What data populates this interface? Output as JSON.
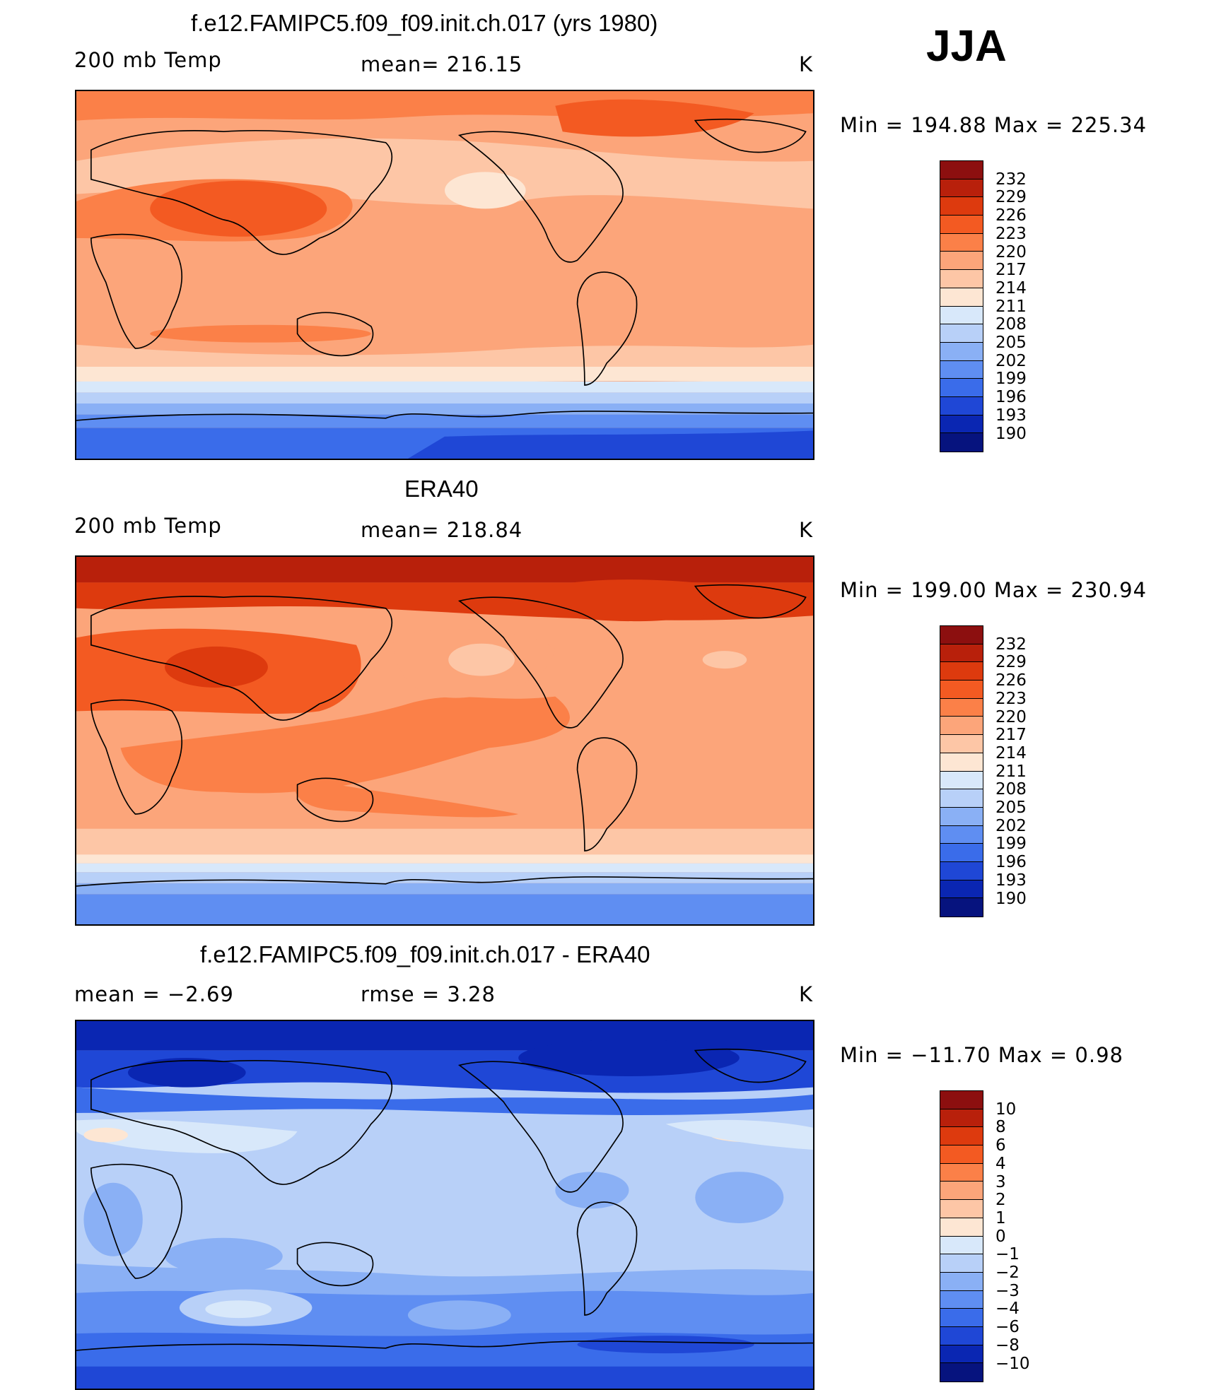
{
  "season": "JJA",
  "panels": [
    {
      "title": "f.e12.FAMIPC5.f09_f09.init.ch.017 (yrs 1980)",
      "left_label": "200 mb Temp",
      "center_label": "mean= 216.15",
      "units": "K",
      "minmax": "Min = 194.88 Max = 225.34",
      "colorbar_labels": [
        "232",
        "229",
        "226",
        "223",
        "220",
        "217",
        "214",
        "211",
        "208",
        "205",
        "202",
        "199",
        "196",
        "193",
        "190"
      ]
    },
    {
      "title": "ERA40",
      "left_label": "200 mb Temp",
      "center_label": "mean= 218.84",
      "units": "K",
      "minmax": "Min = 199.00 Max = 230.94",
      "colorbar_labels": [
        "232",
        "229",
        "226",
        "223",
        "220",
        "217",
        "214",
        "211",
        "208",
        "205",
        "202",
        "199",
        "196",
        "193",
        "190"
      ]
    },
    {
      "title": "f.e12.FAMIPC5.f09_f09.init.ch.017 - ERA40",
      "left_label": "mean =    −2.69",
      "center_label": "rmse =     3.28",
      "units": "K",
      "minmax": "Min = −11.70 Max =     0.98",
      "colorbar_labels": [
        "10",
        "8",
        "6",
        "4",
        "3",
        "2",
        "1",
        "0",
        "−1",
        "−2",
        "−3",
        "−4",
        "−6",
        "−8",
        "−10"
      ]
    }
  ],
  "palette": {
    "abs": [
      "#8c0f0f",
      "#b8200b",
      "#dd3a0e",
      "#f35a22",
      "#fb8048",
      "#fca57a",
      "#fdc6a6",
      "#fde6d3",
      "#d8e8fa",
      "#b8d0f8",
      "#8ab0f5",
      "#5f8ef2",
      "#3a6cea",
      "#1f47d6",
      "#0a26b2",
      "#06137e"
    ],
    "diff": [
      "#8c0f0f",
      "#b8200b",
      "#dd3a0e",
      "#f35a22",
      "#fb8048",
      "#fca57a",
      "#fdc6a6",
      "#fde6d3",
      "#d8e8fa",
      "#b8d0f8",
      "#8ab0f5",
      "#5f8ef2",
      "#3a6cea",
      "#1f47d6",
      "#0a26b2",
      "#06137e"
    ]
  }
}
